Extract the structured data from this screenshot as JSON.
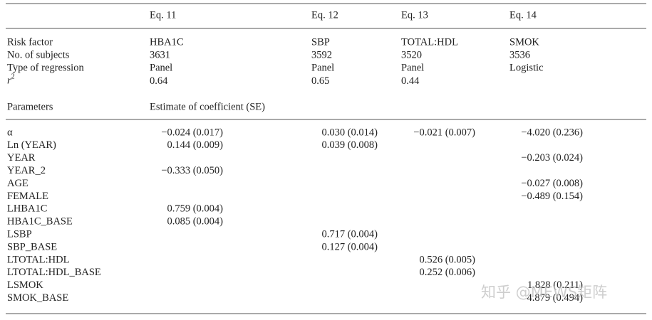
{
  "header": {
    "columns": [
      "Eq. 11",
      "Eq. 12",
      "Eq. 13",
      "Eq. 14"
    ]
  },
  "model_rows": [
    {
      "label": "Risk factor",
      "cells": [
        "HBA1C",
        "SBP",
        "TOTAL:HDL",
        "SMOK"
      ]
    },
    {
      "label": "No. of subjects",
      "cells": [
        "3631",
        "3592",
        "3520",
        "3536"
      ]
    },
    {
      "label": "Type of regression",
      "cells": [
        "Panel",
        "Panel",
        "Panel",
        "Logistic"
      ]
    },
    {
      "label": "r",
      "sup": "2",
      "cells": [
        "0.64",
        "0.65",
        "0.44",
        null
      ]
    }
  ],
  "parameters_heading": {
    "label": "Parameters",
    "subtitle": "Estimate of coefficient (SE)"
  },
  "parameters": [
    {
      "label": "α",
      "cells": [
        "−0.024 (0.017)",
        "0.030 (0.014)",
        "−0.021 (0.007)",
        "−4.020 (0.236)"
      ]
    },
    {
      "label": "Ln (YEAR)",
      "cells": [
        "0.144 (0.009)",
        "0.039 (0.008)",
        null,
        null
      ]
    },
    {
      "label": "YEAR",
      "cells": [
        null,
        null,
        null,
        "−0.203 (0.024)"
      ]
    },
    {
      "label": "YEAR_2",
      "cells": [
        "−0.333 (0.050)",
        null,
        null,
        null
      ]
    },
    {
      "label": "AGE",
      "cells": [
        null,
        null,
        null,
        "−0.027 (0.008)"
      ]
    },
    {
      "label": "FEMALE",
      "cells": [
        null,
        null,
        null,
        "−0.489 (0.154)"
      ]
    },
    {
      "label": "LHBA1C",
      "cells": [
        "0.759 (0.004)",
        null,
        null,
        null
      ]
    },
    {
      "label": "HBA1C_BASE",
      "cells": [
        "0.085 (0.004)",
        null,
        null,
        null
      ]
    },
    {
      "label": "LSBP",
      "cells": [
        null,
        "0.717 (0.004)",
        null,
        null
      ]
    },
    {
      "label": "SBP_BASE",
      "cells": [
        null,
        "0.127 (0.004)",
        null,
        null
      ]
    },
    {
      "label": "LTOTAL:HDL",
      "cells": [
        null,
        null,
        "0.526 (0.005)",
        null
      ]
    },
    {
      "label": "LTOTAL:HDL_BASE",
      "cells": [
        null,
        null,
        "0.252 (0.006)",
        null
      ]
    },
    {
      "label": "LSMOK",
      "cells": [
        null,
        null,
        null,
        "1.828 (0.211)"
      ]
    },
    {
      "label": "SMOK_BASE",
      "cells": [
        null,
        null,
        null,
        "4.879 (0.494)"
      ]
    }
  ],
  "watermark": "知乎 @MEWS矩阵"
}
